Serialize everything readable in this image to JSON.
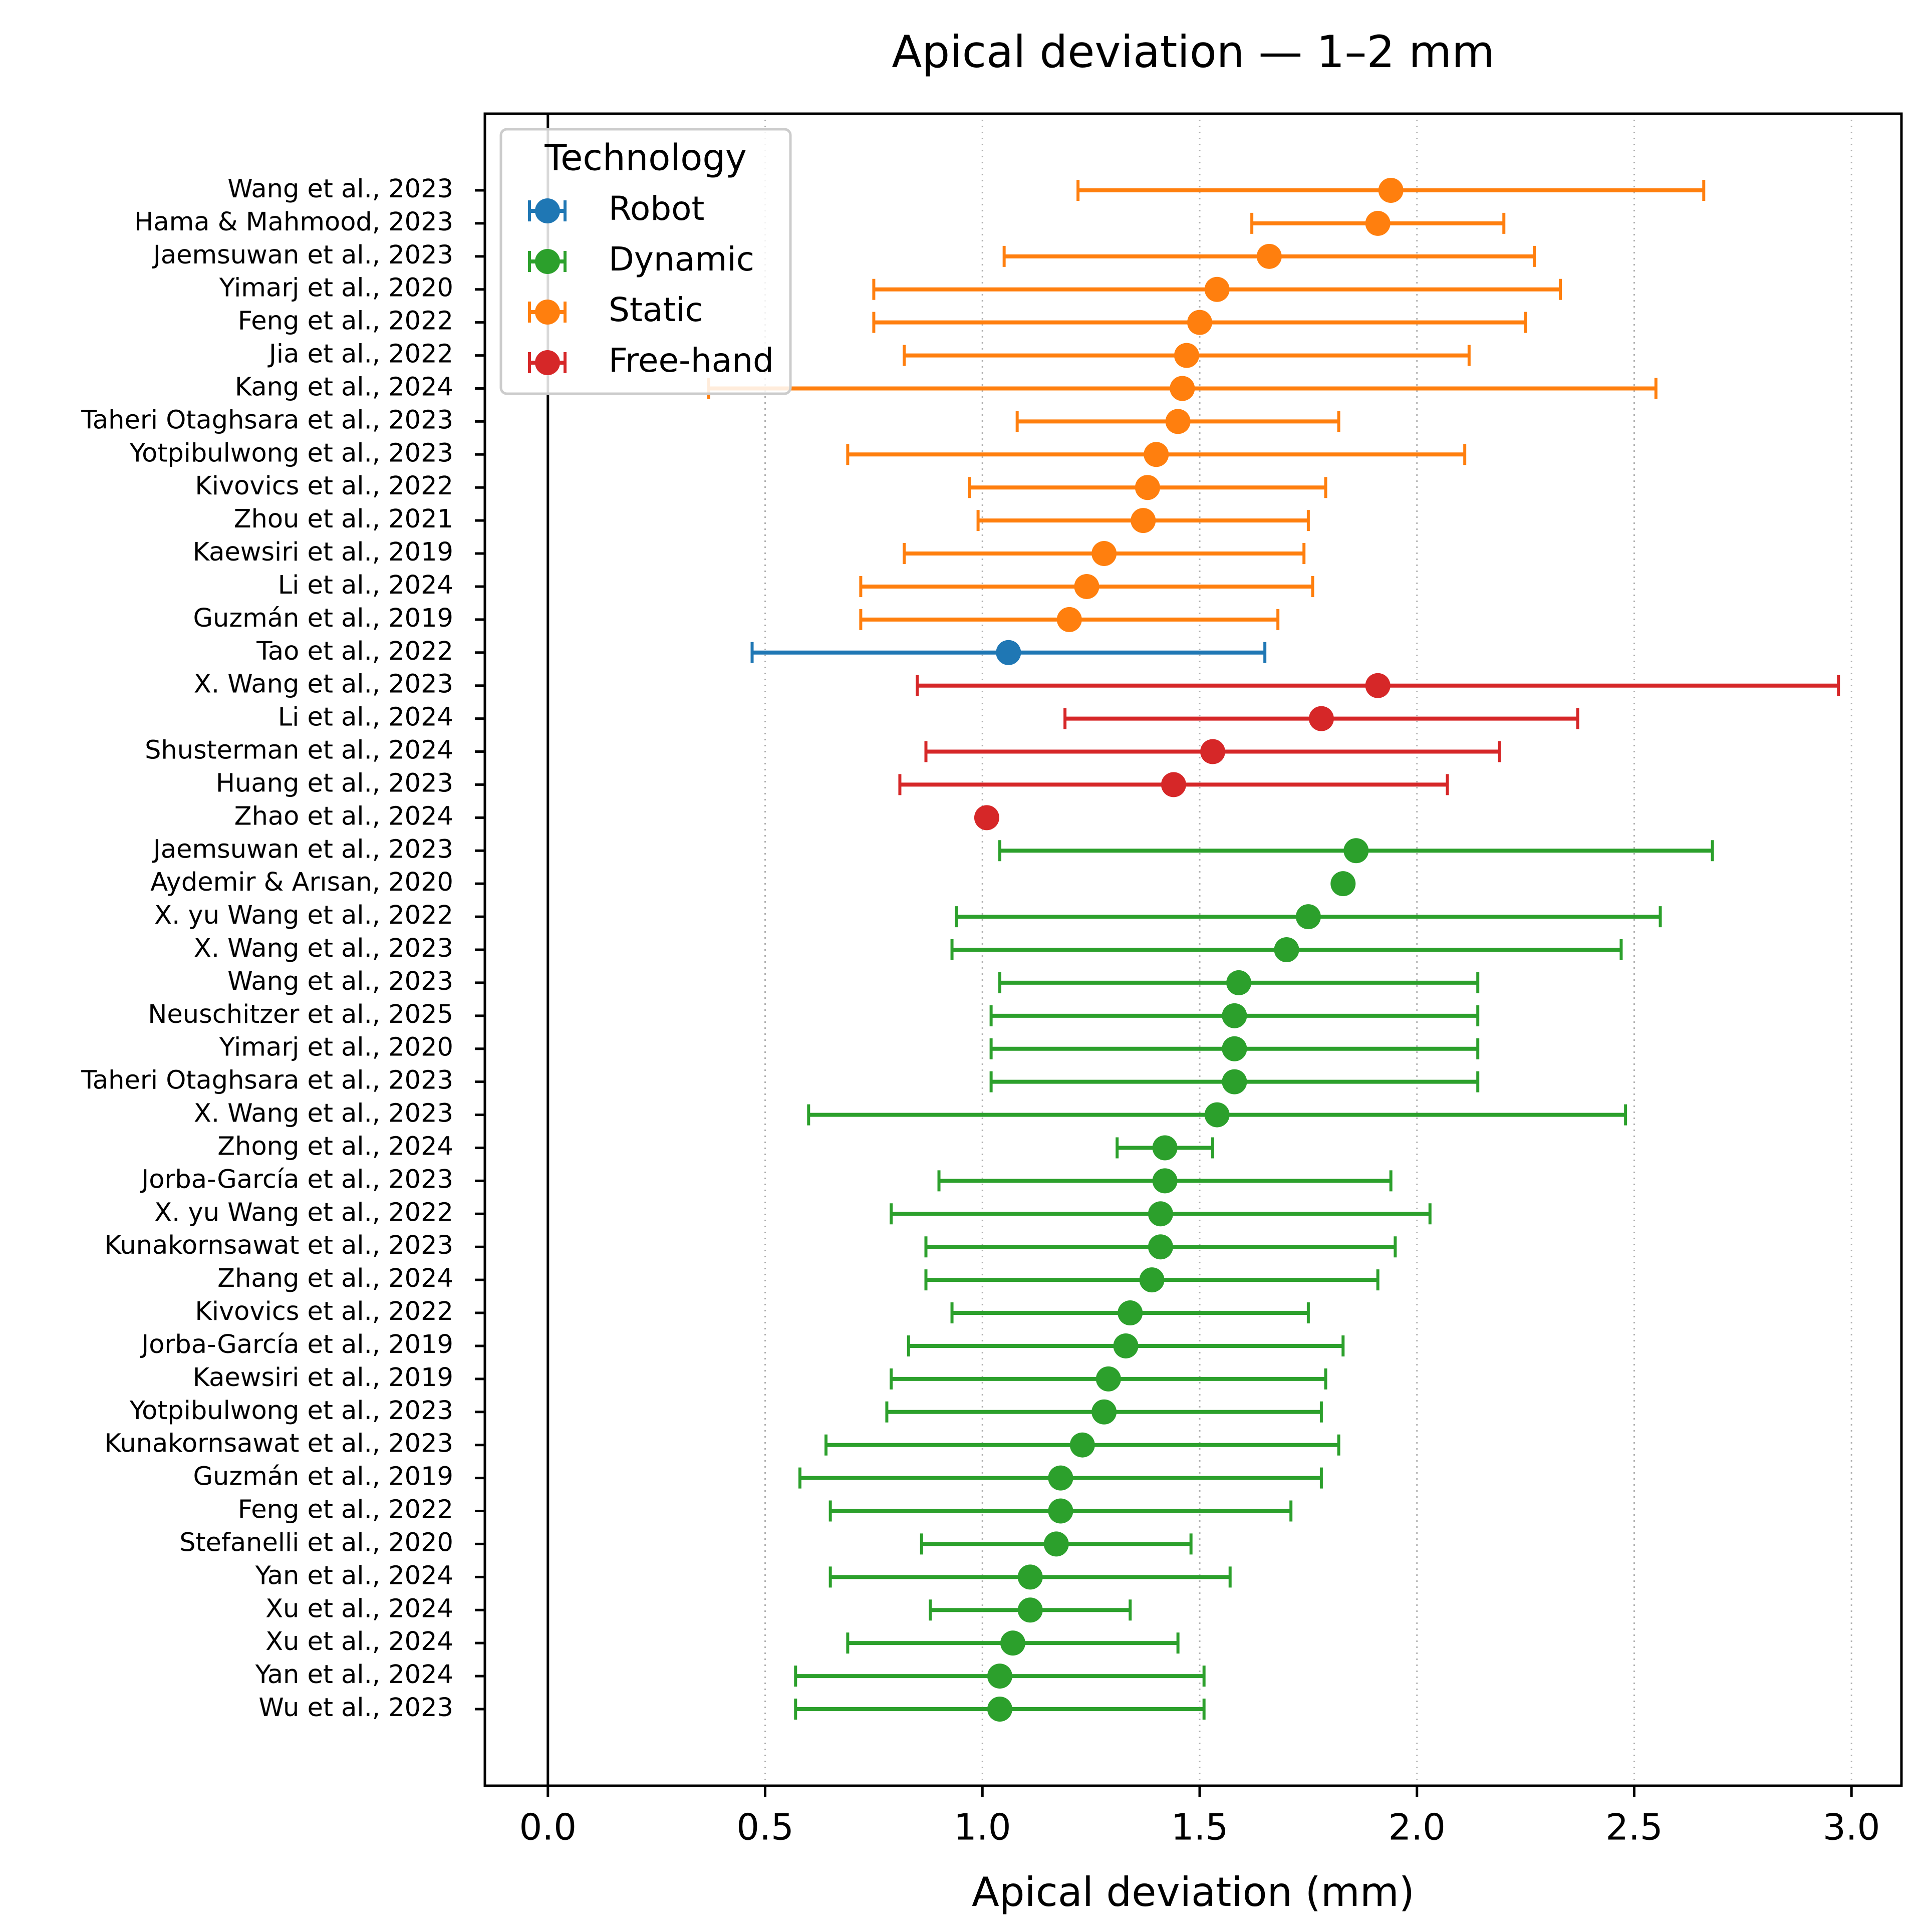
{
  "chart_data": {
    "type": "scatter",
    "title": "Apical deviation — 1–2 mm",
    "xlabel": "Apical deviation (mm)",
    "ylabel": "",
    "xlim": [
      -0.145,
      3.115
    ],
    "xticks": [
      0.0,
      0.5,
      1.0,
      1.5,
      2.0,
      2.5,
      3.0
    ],
    "xtick_labels": [
      "0.0",
      "0.5",
      "1.0",
      "1.5",
      "2.0",
      "2.5",
      "3.0"
    ],
    "grid": "x, dotted",
    "reference_line_x": 0,
    "legend": {
      "title": "Technology",
      "position": "top-left",
      "entries": [
        "Robot",
        "Dynamic",
        "Static",
        "Free-hand"
      ]
    },
    "colors": {
      "Robot": "#1f77b4",
      "Dynamic": "#2ca02c",
      "Static": "#ff7f0e",
      "Free-hand": "#d62728"
    },
    "studies": [
      {
        "label": "Wang et al., 2023",
        "group": "Static",
        "mean": 1.94,
        "lo": 1.22,
        "hi": 2.66
      },
      {
        "label": "Hama & Mahmood, 2023",
        "group": "Static",
        "mean": 1.91,
        "lo": 1.62,
        "hi": 2.2
      },
      {
        "label": "Jaemsuwan et al., 2023",
        "group": "Static",
        "mean": 1.66,
        "lo": 1.05,
        "hi": 2.27
      },
      {
        "label": "Yimarj et al., 2020",
        "group": "Static",
        "mean": 1.54,
        "lo": 0.75,
        "hi": 2.33
      },
      {
        "label": "Feng et al., 2022",
        "group": "Static",
        "mean": 1.5,
        "lo": 0.75,
        "hi": 2.25
      },
      {
        "label": "Jia et al., 2022",
        "group": "Static",
        "mean": 1.47,
        "lo": 0.82,
        "hi": 2.12
      },
      {
        "label": "Kang et al., 2024",
        "group": "Static",
        "mean": 1.46,
        "lo": 0.37,
        "hi": 2.55
      },
      {
        "label": "Taheri Otaghsara et al., 2023",
        "group": "Static",
        "mean": 1.45,
        "lo": 1.08,
        "hi": 1.82
      },
      {
        "label": "Yotpibulwong et al., 2023",
        "group": "Static",
        "mean": 1.4,
        "lo": 0.69,
        "hi": 2.11
      },
      {
        "label": "Kivovics et al., 2022",
        "group": "Static",
        "mean": 1.38,
        "lo": 0.97,
        "hi": 1.79
      },
      {
        "label": "Zhou et al., 2021",
        "group": "Static",
        "mean": 1.37,
        "lo": 0.99,
        "hi": 1.75
      },
      {
        "label": "Kaewsiri et al., 2019",
        "group": "Static",
        "mean": 1.28,
        "lo": 0.82,
        "hi": 1.74
      },
      {
        "label": "Li et al., 2024",
        "group": "Static",
        "mean": 1.24,
        "lo": 0.72,
        "hi": 1.76
      },
      {
        "label": "Guzmán et al., 2019",
        "group": "Static",
        "mean": 1.2,
        "lo": 0.72,
        "hi": 1.68
      },
      {
        "label": "Tao et al., 2022",
        "group": "Robot",
        "mean": 1.06,
        "lo": 0.47,
        "hi": 1.65
      },
      {
        "label": "X. Wang et al., 2023",
        "group": "Free-hand",
        "mean": 1.91,
        "lo": 0.85,
        "hi": 2.97
      },
      {
        "label": "Li et al., 2024",
        "group": "Free-hand",
        "mean": 1.78,
        "lo": 1.19,
        "hi": 2.37
      },
      {
        "label": "Shusterman et al., 2024",
        "group": "Free-hand",
        "mean": 1.53,
        "lo": 0.87,
        "hi": 2.19
      },
      {
        "label": "Huang et al., 2023",
        "group": "Free-hand",
        "mean": 1.44,
        "lo": 0.81,
        "hi": 2.07
      },
      {
        "label": "Zhao et al., 2024",
        "group": "Free-hand",
        "mean": 1.01,
        "lo": null,
        "hi": null
      },
      {
        "label": "Jaemsuwan et al., 2023",
        "group": "Dynamic",
        "mean": 1.86,
        "lo": 1.04,
        "hi": 2.68
      },
      {
        "label": "Aydemir & Arısan, 2020",
        "group": "Dynamic",
        "mean": 1.83,
        "lo": null,
        "hi": null
      },
      {
        "label": "X. yu Wang et al., 2022",
        "group": "Dynamic",
        "mean": 1.75,
        "lo": 0.94,
        "hi": 2.56
      },
      {
        "label": "X. Wang et al., 2023",
        "group": "Dynamic",
        "mean": 1.7,
        "lo": 0.93,
        "hi": 2.47
      },
      {
        "label": "Wang et al., 2023",
        "group": "Dynamic",
        "mean": 1.59,
        "lo": 1.04,
        "hi": 2.14
      },
      {
        "label": "Neuschitzer et al., 2025",
        "group": "Dynamic",
        "mean": 1.58,
        "lo": 1.02,
        "hi": 2.14
      },
      {
        "label": "Yimarj et al., 2020",
        "group": "Dynamic",
        "mean": 1.58,
        "lo": 1.02,
        "hi": 2.14
      },
      {
        "label": "Taheri Otaghsara et al., 2023",
        "group": "Dynamic",
        "mean": 1.58,
        "lo": 1.02,
        "hi": 2.14
      },
      {
        "label": "X. Wang et al., 2023",
        "group": "Dynamic",
        "mean": 1.54,
        "lo": 0.6,
        "hi": 2.48
      },
      {
        "label": "Zhong et al., 2024",
        "group": "Dynamic",
        "mean": 1.42,
        "lo": 1.31,
        "hi": 1.53
      },
      {
        "label": "Jorba-García et al., 2023",
        "group": "Dynamic",
        "mean": 1.42,
        "lo": 0.9,
        "hi": 1.94
      },
      {
        "label": "X. yu Wang et al., 2022",
        "group": "Dynamic",
        "mean": 1.41,
        "lo": 0.79,
        "hi": 2.03
      },
      {
        "label": "Kunakornsawat et al., 2023",
        "group": "Dynamic",
        "mean": 1.41,
        "lo": 0.87,
        "hi": 1.95
      },
      {
        "label": "Zhang et al., 2024",
        "group": "Dynamic",
        "mean": 1.39,
        "lo": 0.87,
        "hi": 1.91
      },
      {
        "label": "Kivovics et al., 2022",
        "group": "Dynamic",
        "mean": 1.34,
        "lo": 0.93,
        "hi": 1.75
      },
      {
        "label": "Jorba-García et al., 2019",
        "group": "Dynamic",
        "mean": 1.33,
        "lo": 0.83,
        "hi": 1.83
      },
      {
        "label": "Kaewsiri et al., 2019",
        "group": "Dynamic",
        "mean": 1.29,
        "lo": 0.79,
        "hi": 1.79
      },
      {
        "label": "Yotpibulwong et al., 2023",
        "group": "Dynamic",
        "mean": 1.28,
        "lo": 0.78,
        "hi": 1.78
      },
      {
        "label": "Kunakornsawat et al., 2023",
        "group": "Dynamic",
        "mean": 1.23,
        "lo": 0.64,
        "hi": 1.82
      },
      {
        "label": "Guzmán et al., 2019",
        "group": "Dynamic",
        "mean": 1.18,
        "lo": 0.58,
        "hi": 1.78
      },
      {
        "label": "Feng et al., 2022",
        "group": "Dynamic",
        "mean": 1.18,
        "lo": 0.65,
        "hi": 1.71
      },
      {
        "label": "Stefanelli et al., 2020",
        "group": "Dynamic",
        "mean": 1.17,
        "lo": 0.86,
        "hi": 1.48
      },
      {
        "label": "Yan et al., 2024",
        "group": "Dynamic",
        "mean": 1.11,
        "lo": 0.65,
        "hi": 1.57
      },
      {
        "label": "Xu et al., 2024",
        "group": "Dynamic",
        "mean": 1.11,
        "lo": 0.88,
        "hi": 1.34
      },
      {
        "label": "Xu et al., 2024",
        "group": "Dynamic",
        "mean": 1.07,
        "lo": 0.69,
        "hi": 1.45
      },
      {
        "label": "Yan et al., 2024",
        "group": "Dynamic",
        "mean": 1.04,
        "lo": 0.57,
        "hi": 1.51
      },
      {
        "label": "Wu et al., 2023",
        "group": "Dynamic",
        "mean": 1.04,
        "lo": 0.57,
        "hi": 1.51
      }
    ]
  }
}
